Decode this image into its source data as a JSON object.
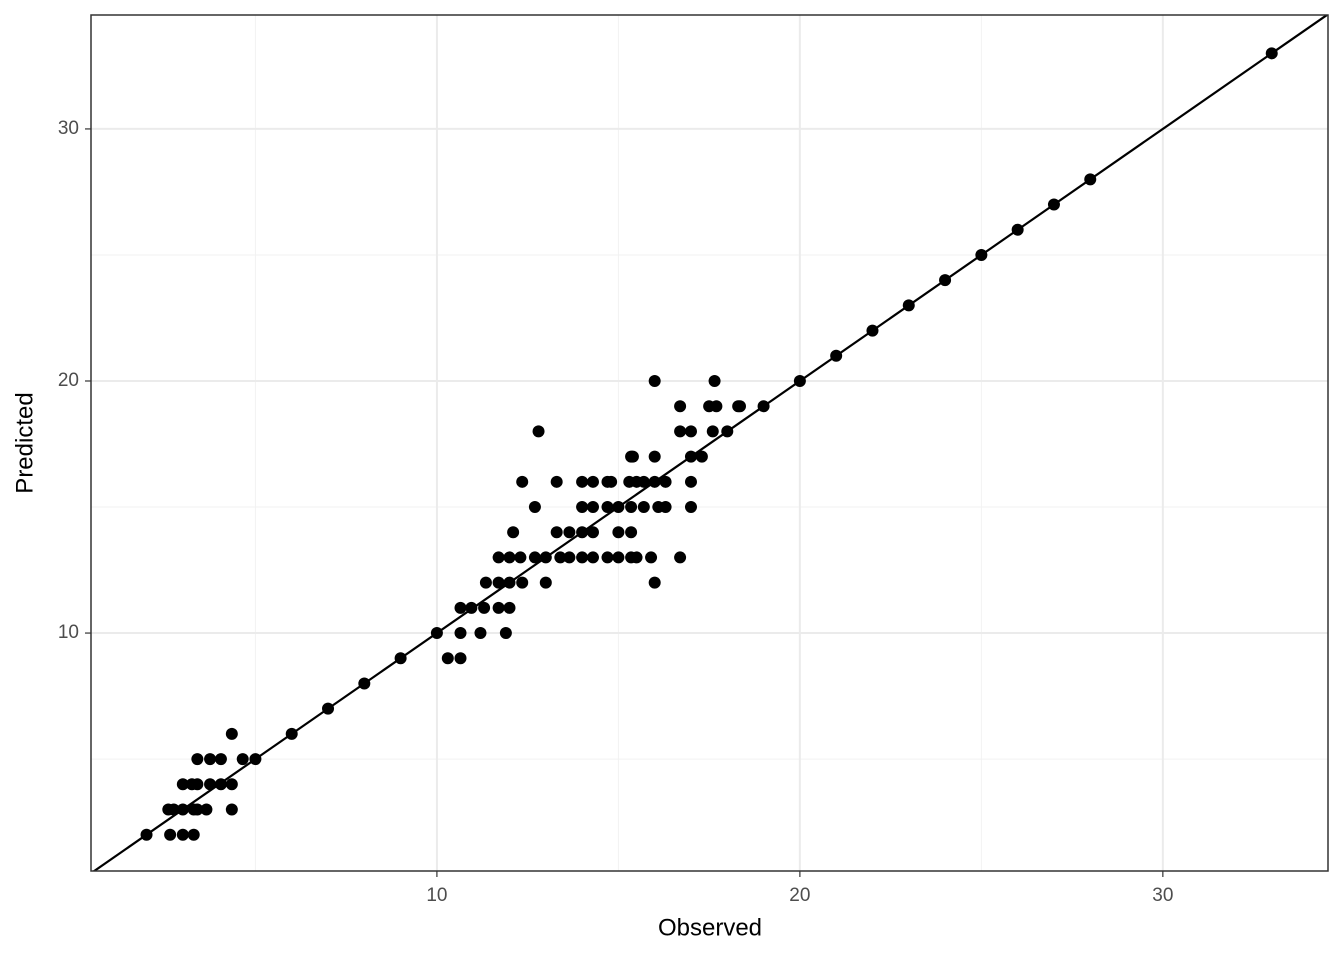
{
  "chart_data": {
    "type": "scatter",
    "x_label": "Observed",
    "y_label": "Predicted",
    "x": [
      33,
      28,
      27,
      26,
      25,
      24,
      23,
      22,
      21,
      20,
      19,
      16.0,
      17.65,
      16.7,
      17.5,
      17.7,
      18.3,
      18.35,
      12.8,
      16.7,
      17.0,
      17.6,
      18.0,
      15.35,
      15.4,
      16.0,
      17.0,
      17.3,
      12.35,
      13.3,
      14.0,
      14.3,
      14.7,
      14.8,
      15.3,
      15.5,
      15.7,
      16.0,
      16.3,
      17.0,
      12.7,
      14.0,
      14.3,
      14.7,
      15.0,
      15.35,
      15.7,
      16.1,
      16.3,
      17.0,
      12.1,
      13.3,
      13.65,
      14.0,
      14.3,
      15.0,
      15.35,
      11.7,
      12.0,
      12.3,
      12.7,
      13.0,
      13.4,
      13.65,
      14.0,
      14.3,
      14.7,
      15.0,
      15.35,
      15.5,
      15.9,
      16.7,
      11.35,
      11.7,
      12.0,
      12.35,
      13.0,
      16.0,
      10.65,
      10.95,
      11.3,
      11.7,
      12.0,
      10,
      10.65,
      11.2,
      11.9,
      9,
      10.3,
      10.65,
      8,
      7,
      6,
      4.35,
      3.4,
      3.75,
      4.05,
      4.65,
      5,
      3.0,
      3.25,
      3.4,
      3.75,
      4.05,
      4.35,
      2.6,
      2.75,
      3.0,
      3.3,
      3.4,
      3.65,
      4.35,
      2.0,
      2.65,
      3.0,
      3.3
    ],
    "y": [
      33,
      28,
      27,
      26,
      25,
      24,
      23,
      22,
      21,
      20,
      19,
      20,
      20,
      19,
      19,
      19,
      19,
      19,
      18,
      18,
      18,
      18,
      18,
      17,
      17,
      17,
      17,
      17,
      16,
      16,
      16,
      16,
      16,
      16,
      16,
      16,
      16,
      16,
      16,
      16,
      15,
      15,
      15,
      15,
      15,
      15,
      15,
      15,
      15,
      15,
      14,
      14,
      14,
      14,
      14,
      14,
      14,
      13,
      13,
      13,
      13,
      13,
      13,
      13,
      13,
      13,
      13,
      13,
      13,
      13,
      13,
      13,
      12,
      12,
      12,
      12,
      12,
      12,
      11,
      11,
      11,
      11,
      11,
      10,
      10,
      10,
      10,
      9,
      9,
      9,
      8,
      7,
      6,
      6,
      5,
      5,
      5,
      5,
      5,
      4,
      4,
      4,
      4,
      4,
      4,
      3,
      3,
      3,
      3,
      3,
      3,
      3,
      2,
      2,
      2,
      2
    ],
    "color": "#000000",
    "reference_line": {
      "slope": 1,
      "intercept": 0,
      "color": "#000000"
    },
    "xlim": [
      0.47,
      34.55
    ],
    "ylim": [
      0.56,
      34.52
    ],
    "xticks": [
      10,
      20,
      30
    ],
    "yticks": [
      10,
      20,
      30
    ],
    "xminor": [
      5,
      15,
      25
    ],
    "yminor": [
      5,
      15,
      25
    ],
    "grid": true
  }
}
